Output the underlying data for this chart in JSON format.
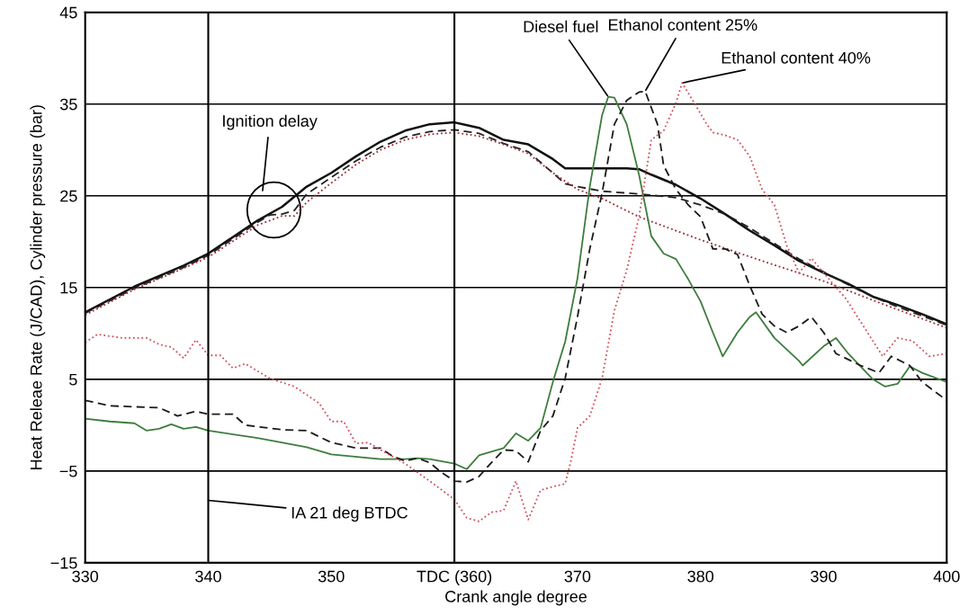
{
  "chart_data": {
    "type": "line",
    "xlabel": "Crank angle degree",
    "ylabel": "Heat Releae Rate (J/CAD), Cylinder pressure (bar)",
    "xlim": [
      330,
      400
    ],
    "ylim": [
      -15,
      45
    ],
    "xticks": [
      330,
      340,
      350,
      {
        "value": 360,
        "label": "TDC (360)"
      },
      370,
      380,
      390,
      400
    ],
    "yticks": [
      {
        "value": -15,
        "label": "−15"
      },
      {
        "value": -5,
        "label": "−5"
      },
      5,
      15,
      25,
      35,
      45
    ],
    "grid": "y",
    "legend": false,
    "ref_lines": [
      {
        "axis": "x",
        "value": 340,
        "color": "#000000"
      },
      {
        "axis": "x",
        "value": 360,
        "color": "#000000"
      }
    ],
    "annotations": [
      "Ignition delay",
      {
        "text": "IA 21 deg BTDC",
        "x": 340,
        "y": -8.2
      }
    ],
    "series": [
      {
        "color": "#111111",
        "line_style": "solid",
        "x": [
          330,
          334,
          338,
          340,
          344,
          346,
          348,
          350,
          352,
          354,
          356,
          358,
          360,
          362,
          364,
          366,
          368,
          369,
          370,
          372,
          374,
          375,
          376,
          378,
          380,
          382,
          384,
          386,
          388,
          390,
          392,
          394,
          396,
          398,
          400
        ],
        "values": [
          12.3,
          15.1,
          17.4,
          18.7,
          22.3,
          23.8,
          26,
          27.5,
          29.3,
          30.9,
          32.1,
          32.8,
          33,
          32.4,
          31.1,
          30.6,
          29,
          28,
          28,
          28,
          28,
          27.9,
          27.3,
          26.2,
          24.7,
          23,
          21.2,
          19.6,
          17.9,
          16.6,
          15.4,
          14,
          13.1,
          12.1,
          11
        ]
      },
      {
        "color": "#222222",
        "line_style": "dashed",
        "x": [
          330,
          334,
          338,
          340,
          344,
          345,
          346,
          347,
          348,
          350,
          352,
          354,
          356,
          358,
          360,
          362,
          364,
          366,
          368,
          369,
          370,
          372,
          375,
          378,
          380,
          382,
          384,
          386,
          388,
          390,
          392,
          394,
          396,
          398,
          400
        ],
        "values": [
          12.2,
          14.9,
          17.2,
          18.5,
          22.1,
          22.9,
          23,
          23.4,
          25.2,
          27,
          28.8,
          30.3,
          31.4,
          32,
          32.2,
          31.8,
          30.7,
          29.8,
          27.5,
          26.3,
          26,
          25.5,
          25.2,
          24.8,
          24,
          23,
          21.5,
          19.8,
          18.1,
          16.7,
          15.3,
          14,
          12.9,
          11.9,
          10.9
        ]
      },
      {
        "color": "#9a2a35",
        "line_style": "dotted",
        "x": [
          330,
          334,
          338,
          340,
          344,
          345,
          346,
          347,
          348,
          350,
          352,
          354,
          356,
          358,
          360,
          362,
          364,
          366,
          368,
          370,
          372,
          375,
          380,
          385,
          390,
          395,
          400
        ],
        "values": [
          12,
          14.8,
          17.1,
          18.3,
          21.8,
          22.3,
          22.8,
          22.8,
          24.3,
          26.4,
          28.4,
          30,
          31.1,
          31.7,
          31.9,
          31.5,
          30.6,
          29.6,
          27.5,
          25.7,
          24.7,
          22.7,
          20.2,
          17.9,
          15.7,
          13.1,
          10.6
        ]
      },
      {
        "name": "Diesel fuel",
        "color": "#3d7d3d",
        "line_style": "solid",
        "x": [
          330,
          332,
          334,
          335,
          336,
          337,
          338,
          339,
          340,
          344,
          348,
          350,
          354,
          356,
          357,
          358,
          360,
          361,
          362,
          364,
          365,
          366,
          367,
          368,
          369,
          370,
          371,
          372,
          372.5,
          373,
          374,
          375,
          376,
          377,
          378,
          379,
          380,
          381,
          381.8,
          383,
          384,
          384.5,
          386,
          388,
          388.3,
          390,
          391,
          392,
          394,
          395,
          396,
          397,
          398,
          400
        ],
        "values": [
          0.7,
          0.4,
          0.2,
          -0.6,
          -0.4,
          0.1,
          -0.4,
          -0.2,
          -0.6,
          -1.4,
          -2.4,
          -3.2,
          -3.7,
          -3.7,
          -3.6,
          -3.7,
          -4.2,
          -4.8,
          -3.3,
          -2.5,
          -0.9,
          -1.7,
          -0.3,
          4.7,
          9.1,
          16,
          26,
          33.8,
          35.8,
          35.7,
          32.8,
          27.3,
          20.6,
          18.7,
          18.1,
          15.9,
          13.5,
          10.1,
          7.5,
          10.1,
          11.8,
          12.3,
          9.5,
          7,
          6.5,
          8.6,
          9.5,
          7.8,
          5,
          4.2,
          4.5,
          6.4,
          5.7,
          4.7
        ]
      },
      {
        "name": "Ethanol content 25%",
        "color": "#1a1a1a",
        "line_style": "dashed",
        "x": [
          330,
          332,
          334,
          336,
          337.5,
          339,
          340,
          342,
          343,
          346,
          348,
          350,
          352,
          354,
          355,
          356,
          357,
          358,
          359,
          360,
          361,
          362,
          363,
          364,
          365,
          366,
          367,
          368,
          369,
          370,
          371,
          372,
          373,
          374,
          375,
          375.5,
          376.5,
          377,
          378,
          379,
          380,
          381,
          382,
          383,
          384,
          385,
          386,
          387,
          388,
          389,
          390,
          391,
          393,
          394.5,
          395.5,
          397,
          398,
          400
        ],
        "values": [
          2.7,
          2.1,
          2,
          1.9,
          1,
          1.5,
          1.2,
          1.2,
          0,
          -0.5,
          -0.6,
          -1.9,
          -2.5,
          -2.5,
          -3.4,
          -3.9,
          -3.6,
          -4.1,
          -5.2,
          -6.1,
          -6.2,
          -5.6,
          -4.1,
          -2.7,
          -2.8,
          -4,
          -0.6,
          1,
          5.1,
          11.8,
          19.2,
          25.3,
          32.8,
          35.4,
          36.3,
          36.4,
          32.8,
          28.3,
          25.7,
          24,
          22.7,
          19.2,
          19.2,
          18.6,
          15.2,
          12.1,
          10.8,
          10.1,
          10.8,
          11.8,
          10.1,
          7.8,
          6.5,
          5.7,
          7.5,
          6.5,
          4.7,
          2.7
        ]
      },
      {
        "name": "Ethanol content 40%",
        "color": "#d2505c",
        "line_style": "dotted",
        "x": [
          330,
          331,
          333,
          335,
          336,
          337,
          338,
          339,
          340,
          341,
          342,
          343,
          345,
          347,
          349,
          350,
          351,
          352,
          353,
          354,
          356,
          358,
          360,
          361,
          362,
          363,
          364,
          365,
          366,
          367,
          368,
          369,
          369.5,
          370,
          371,
          372,
          373,
          374,
          375,
          376,
          377,
          378,
          378.5,
          379.5,
          380.5,
          381,
          382,
          383,
          384,
          385,
          386,
          387,
          388,
          389,
          390,
          391.8,
          394.8,
          396,
          397.2,
          398.6,
          400
        ],
        "values": [
          9,
          9.9,
          9.5,
          9.5,
          8.8,
          8.5,
          7.3,
          9.3,
          7.6,
          7.6,
          6.2,
          6.7,
          5.1,
          4.2,
          2.4,
          0.4,
          0.4,
          -2,
          -1.9,
          -2.7,
          -4.2,
          -6.1,
          -8.1,
          -10.1,
          -10.5,
          -9.5,
          -9.3,
          -6.1,
          -10.3,
          -7.1,
          -6.7,
          -6.4,
          -3.7,
          -0.3,
          1,
          5.1,
          12.5,
          16.9,
          22.7,
          31.1,
          32.1,
          35.1,
          37.3,
          35.1,
          32.8,
          31.9,
          31.6,
          31.1,
          29.3,
          25.7,
          24,
          19.6,
          16.6,
          18.2,
          16.6,
          13.8,
          7.5,
          9.5,
          9.2,
          7.5,
          7.8
        ]
      }
    ]
  }
}
